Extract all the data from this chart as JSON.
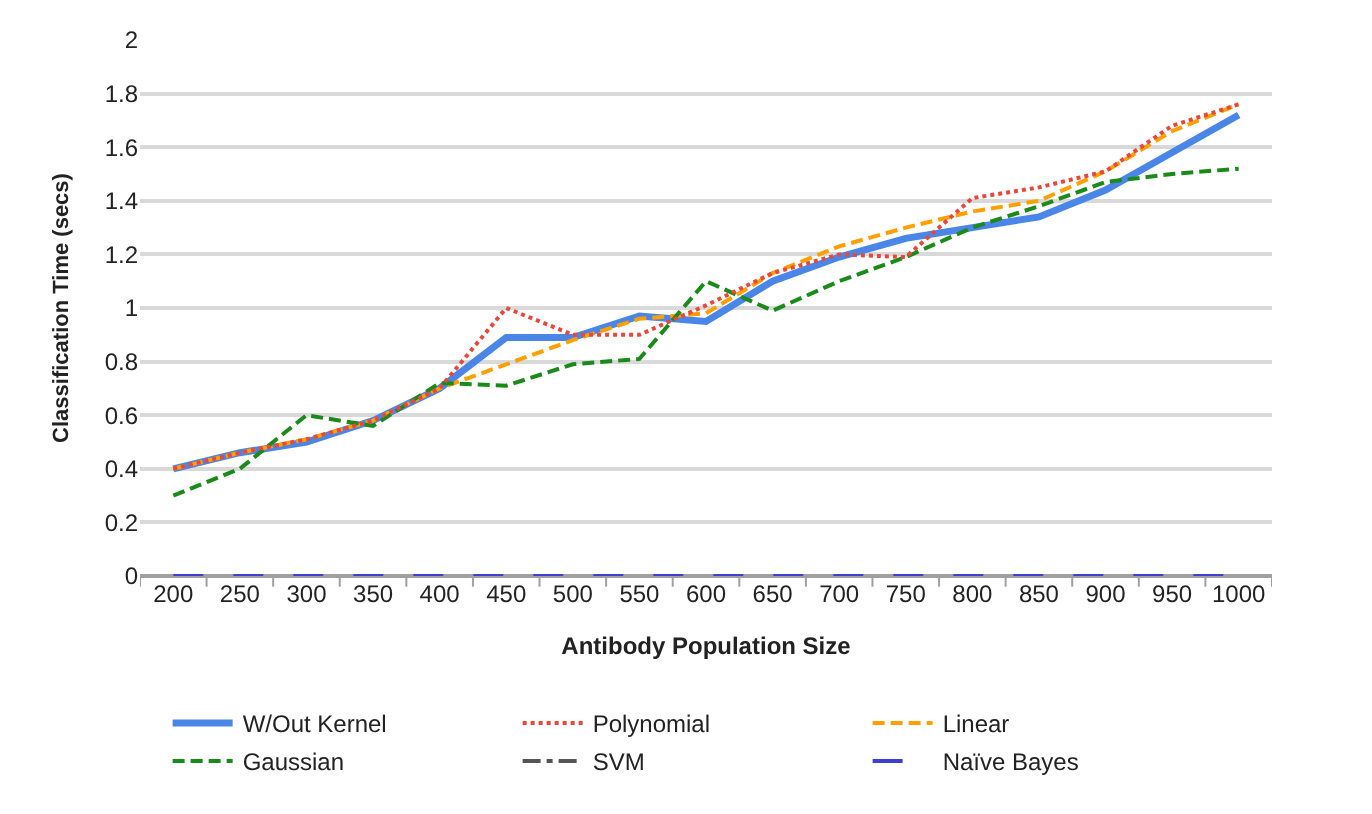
{
  "chart_data": {
    "type": "line",
    "xlabel": "Antibody Population Size",
    "ylabel": "Classification Time (secs)",
    "categories": [
      "200",
      "250",
      "300",
      "350",
      "400",
      "450",
      "500",
      "550",
      "600",
      "650",
      "700",
      "750",
      "800",
      "850",
      "900",
      "950",
      "1000"
    ],
    "ylim": [
      0,
      2
    ],
    "yticks": [
      0,
      0.2,
      0.4,
      0.6,
      0.8,
      1,
      1.2,
      1.4,
      1.6,
      1.8,
      2
    ],
    "grid": "y",
    "legend": "bottom",
    "marker": "none",
    "series": [
      {
        "name": "W/Out Kernel",
        "color": "#4a86e8",
        "line_style": "solid",
        "values": [
          0.4,
          0.46,
          0.5,
          0.58,
          0.7,
          0.89,
          0.89,
          0.97,
          0.95,
          1.1,
          1.19,
          1.26,
          1.3,
          1.34,
          1.44,
          1.58,
          1.72
        ]
      },
      {
        "name": "Polynomial",
        "color": "#e8473c",
        "line_style": "dotted",
        "values": [
          0.4,
          0.46,
          0.51,
          0.58,
          0.7,
          1.0,
          0.9,
          0.9,
          1.01,
          1.13,
          1.2,
          1.19,
          1.41,
          1.45,
          1.51,
          1.68,
          1.76
        ]
      },
      {
        "name": "Linear",
        "color": "#ffa000",
        "line_style": "dashed",
        "values": [
          0.4,
          0.46,
          0.51,
          0.58,
          0.7,
          0.79,
          0.88,
          0.96,
          0.98,
          1.13,
          1.23,
          1.3,
          1.36,
          1.4,
          1.51,
          1.66,
          1.76
        ]
      },
      {
        "name": "Gaussian",
        "color": "#1a8a1a",
        "line_style": "dashed",
        "values": [
          0.3,
          0.4,
          0.6,
          0.56,
          0.72,
          0.71,
          0.79,
          0.81,
          1.1,
          0.99,
          1.1,
          1.19,
          1.3,
          1.38,
          1.47,
          1.5,
          1.52
        ]
      },
      {
        "name": "SVM",
        "color": "#555555",
        "line_style": "dashdot",
        "values": [
          null,
          null,
          null,
          null,
          null,
          null,
          null,
          null,
          null,
          null,
          null,
          null,
          null,
          null,
          null,
          null,
          null
        ]
      },
      {
        "name": "Naïve Bayes",
        "color": "#4040d0",
        "line_style": "longdash",
        "values": [
          0,
          0,
          0,
          0,
          0,
          0,
          0,
          0,
          0,
          0,
          0,
          0,
          0,
          0,
          0,
          0,
          0
        ]
      }
    ]
  }
}
